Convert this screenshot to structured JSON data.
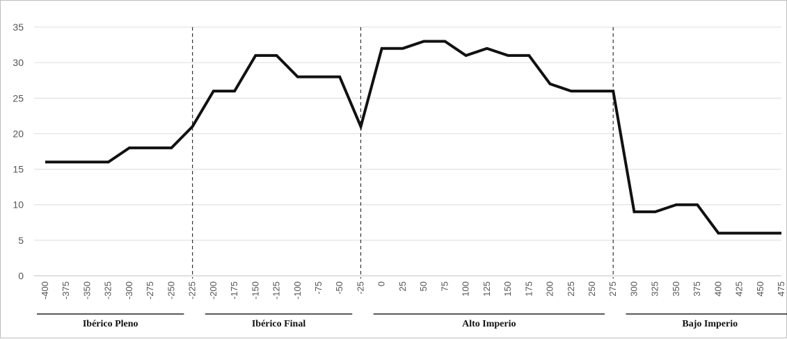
{
  "chart_data": {
    "type": "line",
    "x": [
      -400,
      -375,
      -350,
      -325,
      -300,
      -275,
      -250,
      -225,
      -200,
      -175,
      -150,
      -125,
      -100,
      -75,
      -50,
      -25,
      0,
      25,
      50,
      75,
      100,
      125,
      150,
      175,
      200,
      225,
      250,
      275,
      300,
      325,
      350,
      375,
      400,
      425,
      450,
      475
    ],
    "series": [
      {
        "values": [
          16,
          16,
          16,
          16,
          18,
          18,
          18,
          21,
          26,
          26,
          31,
          31,
          28,
          28,
          28,
          21,
          32,
          32,
          33,
          33,
          31,
          32,
          31,
          31,
          27,
          26,
          26,
          26,
          9,
          9,
          10,
          10,
          6,
          6,
          6,
          6
        ]
      }
    ],
    "x_tick_labels": [
      "-400",
      "-375",
      "-350",
      "-325",
      "-300",
      "-275",
      "-250",
      "-225",
      "-200",
      "-175",
      "-150",
      "-125",
      "-100",
      "-75",
      "-50",
      "-25",
      "0",
      "25",
      "50",
      "75",
      "100",
      "125",
      "150",
      "175",
      "200",
      "225",
      "250",
      "275",
      "300",
      "325",
      "350",
      "375",
      "400",
      "425",
      "450",
      "475"
    ],
    "y_ticks": [
      "0",
      "5",
      "10",
      "15",
      "20",
      "25",
      "30",
      "35"
    ],
    "ylim": [
      0,
      35
    ],
    "grid": "horizontal",
    "line_color": "#111111",
    "divider_x": [
      -225,
      -25,
      275
    ],
    "periods": [
      {
        "label": "Ibérico Pleno",
        "start": -400,
        "end": -250
      },
      {
        "label": "Ibérico Final",
        "start": -200,
        "end": -50
      },
      {
        "label": "Alto Imperio",
        "start": 0,
        "end": 250
      },
      {
        "label": "Bajo Imperio",
        "start": 300,
        "end": 475
      }
    ]
  }
}
